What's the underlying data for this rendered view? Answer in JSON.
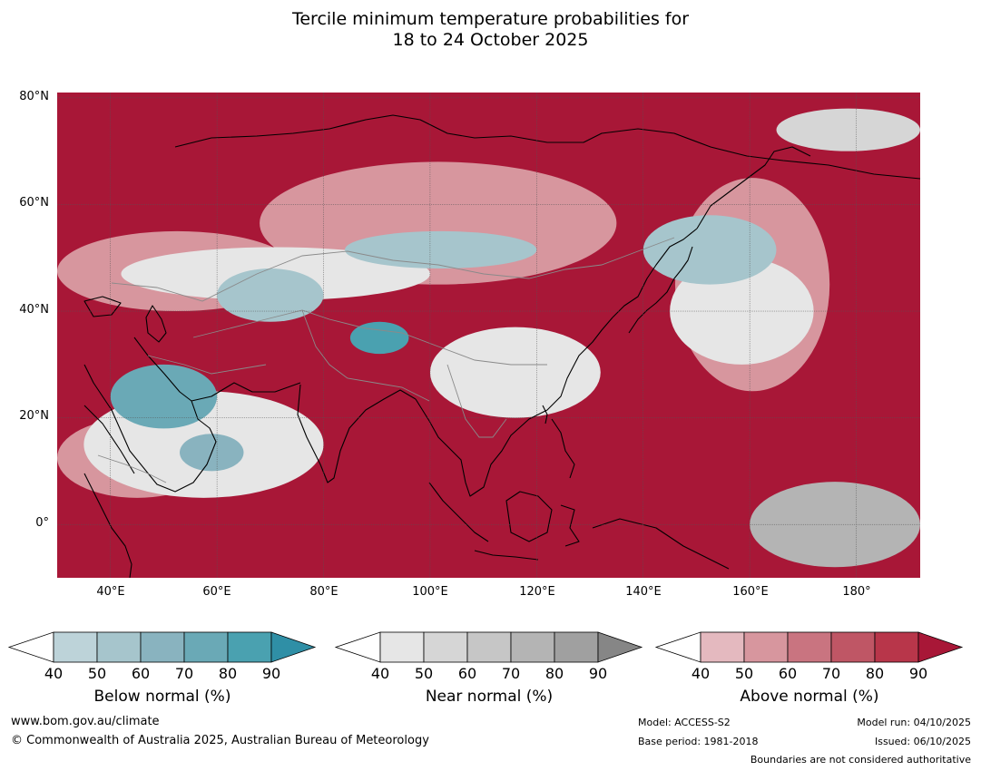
{
  "title_line1": "Tercile minimum temperature probabilities for",
  "title_line2": "18 to 24 October 2025",
  "lat_labels": [
    "80°N",
    "60°N",
    "40°N",
    "20°N",
    "0°"
  ],
  "lon_labels": [
    "40°E",
    "60°E",
    "80°E",
    "100°E",
    "120°E",
    "140°E",
    "160°E",
    "180°"
  ],
  "colorbars": [
    {
      "label": "Below normal (%)",
      "ticks": [
        "40",
        "50",
        "60",
        "70",
        "80",
        "90"
      ],
      "colors": [
        "#ffffff",
        "#bdd3d9",
        "#a6c5cc",
        "#89b3bf",
        "#6aa9b6",
        "#4aa1b0",
        "#2f8fa6"
      ]
    },
    {
      "label": "Near normal (%)",
      "ticks": [
        "40",
        "50",
        "60",
        "70",
        "80",
        "90"
      ],
      "colors": [
        "#ffffff",
        "#e6e6e6",
        "#d6d6d6",
        "#c6c6c6",
        "#b4b4b4",
        "#a0a0a0",
        "#868686"
      ]
    },
    {
      "label": "Above normal (%)",
      "ticks": [
        "40",
        "50",
        "60",
        "70",
        "80",
        "90"
      ],
      "colors": [
        "#ffffff",
        "#e4b9bf",
        "#d7969e",
        "#c97480",
        "#bf5665",
        "#b8364a",
        "#a81737"
      ]
    }
  ],
  "footer": {
    "website": "www.bom.gov.au/climate",
    "copyright": "© Commonwealth of Australia 2025, Australian Bureau of Meteorology",
    "model": "Model: ACCESS-S2",
    "base_period": "Base period: 1981-2018",
    "model_run": "Model run: 04/10/2025",
    "issued": "Issued: 06/10/2025",
    "boundaries_note": "Boundaries are not considered authoritative"
  },
  "chart_data": {
    "type": "heatmap",
    "title": "Tercile minimum temperature probabilities for 18 to 24 October 2025",
    "x_axis": {
      "label": "",
      "range": [
        30,
        192
      ],
      "ticks": [
        40,
        60,
        80,
        100,
        120,
        140,
        160,
        180
      ],
      "unit": "degrees longitude east"
    },
    "y_axis": {
      "label": "",
      "range": [
        -10,
        81
      ],
      "ticks": [
        80,
        60,
        40,
        20,
        0
      ],
      "unit": "degrees latitude"
    },
    "grid": true,
    "legend": "bottom",
    "categories": [
      "Below normal",
      "Near normal",
      "Above normal"
    ],
    "levels": [
      40,
      50,
      60,
      70,
      80,
      90
    ],
    "colors_hex": {
      "below": [
        "#bdd3d9",
        "#a6c5cc",
        "#89b3bf",
        "#6aa9b6",
        "#4aa1b0",
        "#2f8fa6"
      ],
      "near": [
        "#e6e6e6",
        "#d6d6d6",
        "#c6c6c6",
        "#b4b4b4",
        "#a0a0a0",
        "#868686"
      ],
      "above": [
        "#e4b9bf",
        "#d7969e",
        "#c97480",
        "#bf5665",
        "#b8364a",
        "#a81737"
      ]
    },
    "regions": [
      {
        "category": "Above normal",
        "level": 90,
        "lon": [
          30,
          192
        ],
        "lat": [
          -10,
          81
        ]
      },
      {
        "category": "Above normal",
        "level": 50,
        "lon": [
          68,
          135
        ],
        "lat": [
          45,
          68
        ]
      },
      {
        "category": "Above normal",
        "level": 50,
        "lon": [
          30,
          75
        ],
        "lat": [
          40,
          55
        ]
      },
      {
        "category": "Above normal",
        "level": 50,
        "lon": [
          30,
          60
        ],
        "lat": [
          5,
          20
        ]
      },
      {
        "category": "Above normal",
        "level": 50,
        "lon": [
          146,
          175
        ],
        "lat": [
          25,
          65
        ]
      },
      {
        "category": "Near normal",
        "level": 40,
        "lon": [
          42,
          100
        ],
        "lat": [
          42,
          52
        ]
      },
      {
        "category": "Near normal",
        "level": 40,
        "lon": [
          35,
          80
        ],
        "lat": [
          5,
          25
        ]
      },
      {
        "category": "Near normal",
        "level": 40,
        "lon": [
          145,
          172
        ],
        "lat": [
          30,
          50
        ]
      },
      {
        "category": "Near normal",
        "level": 40,
        "lon": [
          100,
          132
        ],
        "lat": [
          20,
          37
        ]
      },
      {
        "category": "Near normal",
        "level": 70,
        "lon": [
          160,
          192
        ],
        "lat": [
          -8,
          8
        ]
      },
      {
        "category": "Near normal",
        "level": 50,
        "lon": [
          165,
          192
        ],
        "lat": [
          70,
          78
        ]
      },
      {
        "category": "Below normal",
        "level": 70,
        "lon": [
          40,
          60
        ],
        "lat": [
          18,
          30
        ]
      },
      {
        "category": "Below normal",
        "level": 80,
        "lon": [
          85,
          96
        ],
        "lat": [
          32,
          38
        ]
      },
      {
        "category": "Below normal",
        "level": 60,
        "lon": [
          53,
          65
        ],
        "lat": [
          10,
          17
        ]
      },
      {
        "category": "Below normal",
        "level": 50,
        "lon": [
          60,
          80
        ],
        "lat": [
          38,
          48
        ]
      },
      {
        "category": "Below normal",
        "level": 50,
        "lon": [
          140,
          165
        ],
        "lat": [
          45,
          58
        ]
      },
      {
        "category": "Below normal",
        "level": 50,
        "lon": [
          84,
          120
        ],
        "lat": [
          48,
          55
        ]
      }
    ]
  }
}
